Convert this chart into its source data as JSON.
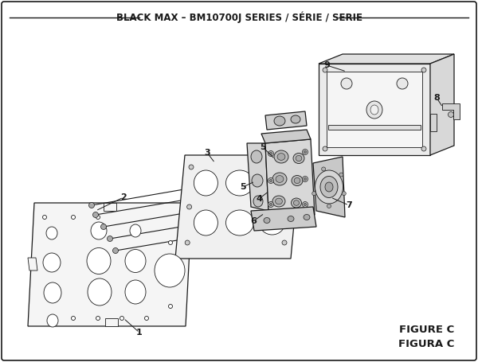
{
  "title": "BLACK MAX – BM10700J SERIES / SÉRIE / SERIE",
  "figure_label": "FIGURE C",
  "figura_label": "FIGURA C",
  "bg_color": "#ffffff",
  "line_color": "#1a1a1a",
  "text_color": "#1a1a1a",
  "title_fontsize": 8.5,
  "label_fontsize": 8,
  "figure_label_fontsize": 9.5
}
